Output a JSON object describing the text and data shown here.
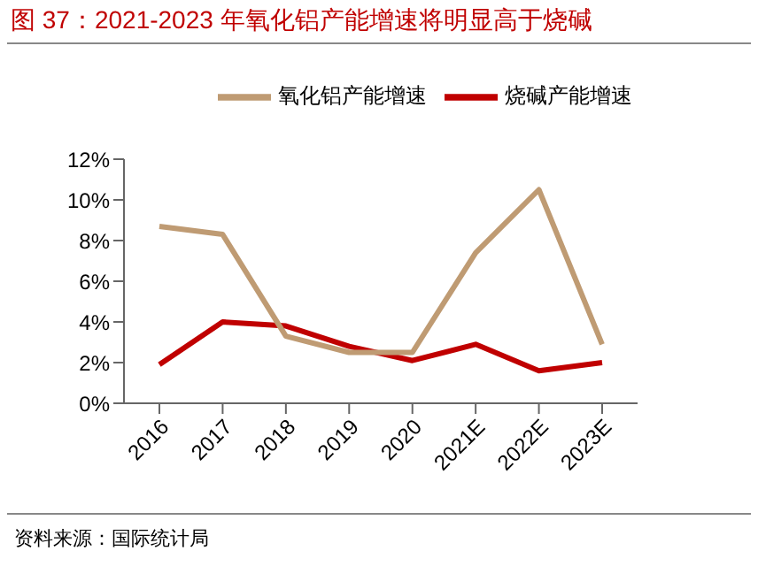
{
  "chart_data": {
    "type": "line",
    "title": "图 37：2021-2023 年氧化铝产能增速将明显高于烧碱",
    "categories": [
      "2016",
      "2017",
      "2018",
      "2019",
      "2020",
      "2021E",
      "2022E",
      "2023E"
    ],
    "series": [
      {
        "name": "烧碱产能增速",
        "color": "#c00000",
        "values": [
          1.9,
          4.0,
          3.8,
          2.8,
          2.1,
          2.9,
          1.6,
          2.0
        ]
      },
      {
        "name": "氧化铝产能增速",
        "color": "#bf9b73",
        "values": [
          8.7,
          8.3,
          3.3,
          2.5,
          2.5,
          7.4,
          10.5,
          2.9
        ]
      }
    ],
    "ylim": [
      0,
      12
    ],
    "yticks": [
      {
        "value": 0,
        "label": "0%"
      },
      {
        "value": 2,
        "label": "2%"
      },
      {
        "value": 4,
        "label": "4%"
      },
      {
        "value": 6,
        "label": "6%"
      },
      {
        "value": 8,
        "label": "8%"
      },
      {
        "value": 10,
        "label": "10%"
      },
      {
        "value": 12,
        "label": "12%"
      }
    ],
    "grid": false,
    "legend": "top",
    "marker": "none",
    "line_style": "solid",
    "annotations": [
      "资料来源：国际统计局"
    ]
  }
}
